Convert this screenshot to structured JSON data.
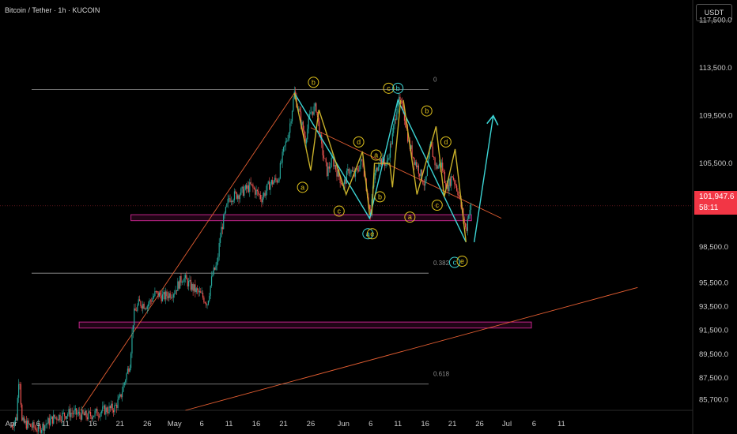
{
  "header": {
    "symbol_title": "Bitcoin / Tether · 1h · KUCOIN",
    "currency_label": "USDT"
  },
  "price_tag": {
    "price": "101,947.6",
    "countdown": "58:11"
  },
  "chart_data": {
    "type": "candlestick",
    "title": "Bitcoin / Tether · 1h · KUCOIN",
    "ylim": [
      84800,
      119200
    ],
    "y_ticks": [
      {
        "value": 117500,
        "label": "117,500.0"
      },
      {
        "value": 113500,
        "label": "113,500.0"
      },
      {
        "value": 109500,
        "label": "109,500.0"
      },
      {
        "value": 105500,
        "label": "105,500.0"
      },
      {
        "value": 98500,
        "label": "98,500.0"
      },
      {
        "value": 95500,
        "label": "95,500.0"
      },
      {
        "value": 93500,
        "label": "93,500.0"
      },
      {
        "value": 91500,
        "label": "91,500.0"
      },
      {
        "value": 89500,
        "label": "89,500.0"
      },
      {
        "value": 87500,
        "label": "87,500.0"
      },
      {
        "value": 85700,
        "label": "85,700.0"
      }
    ],
    "x_ticks": [
      {
        "day": 0,
        "label": "Apr"
      },
      {
        "day": 5,
        "label": "6"
      },
      {
        "day": 10,
        "label": "11"
      },
      {
        "day": 15,
        "label": "16"
      },
      {
        "day": 20,
        "label": "21"
      },
      {
        "day": 25,
        "label": "26"
      },
      {
        "day": 30,
        "label": "May"
      },
      {
        "day": 35,
        "label": "6"
      },
      {
        "day": 40,
        "label": "11"
      },
      {
        "day": 45,
        "label": "16"
      },
      {
        "day": 50,
        "label": "21"
      },
      {
        "day": 55,
        "label": "26"
      },
      {
        "day": 61,
        "label": "Jun"
      },
      {
        "day": 66,
        "label": "6"
      },
      {
        "day": 71,
        "label": "11"
      },
      {
        "day": 76,
        "label": "16"
      },
      {
        "day": 81,
        "label": "21"
      },
      {
        "day": 86,
        "label": "26"
      },
      {
        "day": 91,
        "label": "Jul"
      },
      {
        "day": 96,
        "label": "6"
      },
      {
        "day": 101,
        "label": "11"
      }
    ],
    "price_path": [
      [
        0,
        83500
      ],
      [
        1,
        84200
      ],
      [
        1.5,
        88200
      ],
      [
        2,
        83800
      ],
      [
        5,
        83200
      ],
      [
        8,
        84200
      ],
      [
        11,
        84600
      ],
      [
        14,
        84300
      ],
      [
        17,
        84800
      ],
      [
        19,
        85000
      ],
      [
        20,
        85800
      ],
      [
        21,
        87500
      ],
      [
        21.8,
        88800
      ],
      [
        22.5,
        92800
      ],
      [
        23.5,
        93800
      ],
      [
        25,
        93600
      ],
      [
        26.5,
        94600
      ],
      [
        28,
        94300
      ],
      [
        30,
        94800
      ],
      [
        31.5,
        96000
      ],
      [
        33,
        95200
      ],
      [
        35,
        94400
      ],
      [
        36,
        93800
      ],
      [
        37,
        96200
      ],
      [
        37.8,
        97000
      ],
      [
        38.5,
        99800
      ],
      [
        40,
        102600
      ],
      [
        42,
        103000
      ],
      [
        44,
        103600
      ],
      [
        46,
        102600
      ],
      [
        47.5,
        103800
      ],
      [
        49,
        104200
      ],
      [
        50,
        106500
      ],
      [
        51,
        108200
      ],
      [
        52,
        111400
      ],
      [
        53,
        109500
      ],
      [
        54,
        107500
      ],
      [
        55,
        109800
      ],
      [
        56,
        110200
      ],
      [
        57,
        106800
      ],
      [
        58,
        104800
      ],
      [
        59,
        105800
      ],
      [
        60,
        104600
      ],
      [
        61,
        103600
      ],
      [
        62,
        105000
      ],
      [
        63,
        104500
      ],
      [
        64.5,
        105800
      ],
      [
        65.5,
        102600
      ],
      [
        66,
        101000
      ],
      [
        66.5,
        104000
      ],
      [
        67.5,
        105800
      ],
      [
        69,
        105500
      ],
      [
        70,
        107800
      ],
      [
        71,
        110800
      ],
      [
        72,
        110000
      ],
      [
        73,
        107200
      ],
      [
        74,
        105800
      ],
      [
        75,
        104800
      ],
      [
        76,
        103600
      ],
      [
        77,
        107000
      ],
      [
        78,
        105200
      ],
      [
        79,
        105400
      ],
      [
        80,
        103400
      ],
      [
        81,
        104500
      ],
      [
        82,
        103200
      ],
      [
        83,
        101000
      ],
      [
        83.5,
        99800
      ],
      [
        84,
        101500
      ],
      [
        84.5,
        101947
      ]
    ],
    "fib_levels": [
      {
        "label": "0",
        "value": 111700
      },
      {
        "label": "0.382",
        "value": 96300
      },
      {
        "label": "0.618",
        "value": 87000
      }
    ],
    "zones": [
      {
        "name": "support-zone-upper",
        "from": 100700,
        "to": 101200,
        "x_start": 22,
        "x_end": 84.5
      },
      {
        "name": "support-zone-lower",
        "from": 91700,
        "to": 92200,
        "x_start": 12.5,
        "x_end": 95.5
      }
    ],
    "trendlines": [
      {
        "name": "rising-support-line",
        "color": "#e45e32",
        "points": [
          [
            12.8,
            84800
          ],
          [
            52,
            111400
          ]
        ]
      },
      {
        "name": "long-term-trendline",
        "color": "#e45e32",
        "points": [
          [
            32,
            84800
          ],
          [
            115,
            95100
          ]
        ]
      },
      {
        "name": "descending-resistance-line",
        "color": "#e45e32",
        "points": [
          [
            55,
            108500
          ],
          [
            90,
            100900
          ]
        ]
      }
    ],
    "wave_lines": [
      {
        "color": "#3cd4d4",
        "points": [
          [
            52,
            111400
          ],
          [
            65.8,
            100900
          ],
          [
            71,
            110800
          ],
          [
            83.5,
            98900
          ]
        ]
      },
      {
        "color": "#3cd4d4",
        "points": [
          [
            85,
            98900
          ],
          [
            88.5,
            109500
          ]
        ]
      },
      {
        "color": "#c8b02a",
        "points": [
          [
            52,
            111400
          ],
          [
            55,
            104900
          ],
          [
            56.5,
            110000
          ],
          [
            61.5,
            102900
          ],
          [
            64.5,
            106500
          ],
          [
            65.8,
            101200
          ]
        ]
      },
      {
        "color": "#c8b02a",
        "points": [
          [
            66.2,
            101200
          ],
          [
            66.7,
            105500
          ],
          [
            69.5,
            105500
          ],
          [
            70,
            103500
          ],
          [
            71.5,
            110800
          ]
        ]
      },
      {
        "color": "#c8b02a",
        "points": [
          [
            72,
            110800
          ],
          [
            74.5,
            102900
          ],
          [
            78,
            108600
          ],
          [
            79.5,
            102700
          ],
          [
            81.5,
            106700
          ],
          [
            83.5,
            98900
          ]
        ]
      }
    ],
    "wave_labels": [
      {
        "text": "b",
        "day": 55.5,
        "value": 112300,
        "color": "yellow"
      },
      {
        "text": "a",
        "day": 53.5,
        "value": 103500,
        "color": "yellow"
      },
      {
        "text": "c",
        "day": 60.2,
        "value": 101500,
        "color": "yellow"
      },
      {
        "text": "d",
        "day": 63.8,
        "value": 107300,
        "color": "yellow"
      },
      {
        "text": "a",
        "day": 67,
        "value": 106200,
        "color": "yellow"
      },
      {
        "text": "b",
        "day": 67.7,
        "value": 102700,
        "color": "yellow"
      },
      {
        "text": "c",
        "day": 69.3,
        "value": 111800,
        "color": "yellow"
      },
      {
        "text": "b",
        "day": 71,
        "value": 111800,
        "color": "cyan"
      },
      {
        "text": "a",
        "day": 65.5,
        "value": 99600,
        "color": "cyan"
      },
      {
        "text": "e",
        "day": 66.3,
        "value": 99600,
        "color": "yellow"
      },
      {
        "text": "b",
        "day": 76.3,
        "value": 109900,
        "color": "yellow"
      },
      {
        "text": "d",
        "day": 79.8,
        "value": 107300,
        "color": "yellow"
      },
      {
        "text": "a",
        "day": 73.2,
        "value": 101000,
        "color": "yellow"
      },
      {
        "text": "c",
        "day": 78.2,
        "value": 102000,
        "color": "yellow"
      },
      {
        "text": "c",
        "day": 81.4,
        "value": 97200,
        "color": "cyan"
      },
      {
        "text": "e",
        "day": 82.8,
        "value": 97300,
        "color": "yellow"
      }
    ]
  }
}
